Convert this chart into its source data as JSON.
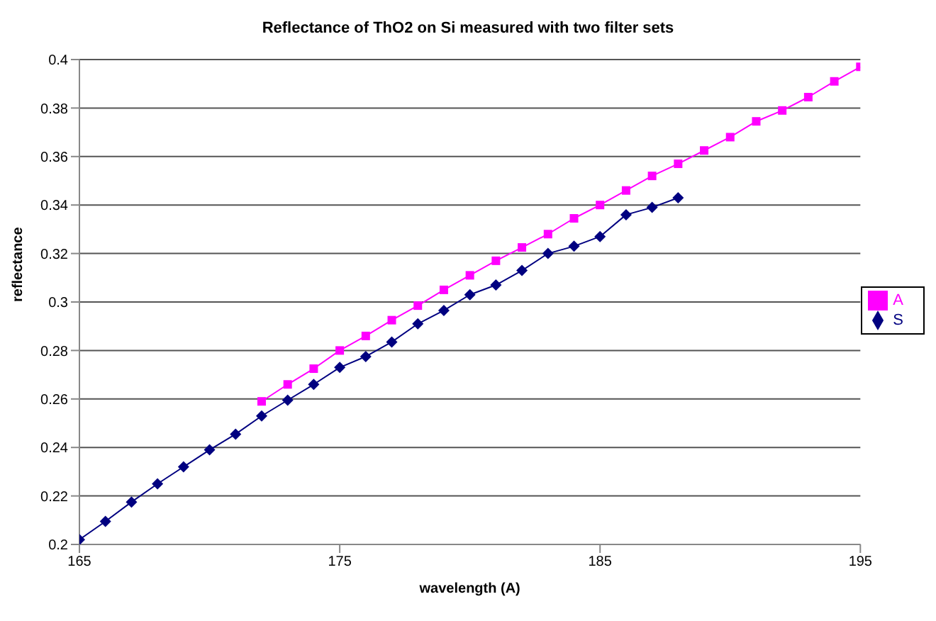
{
  "chart_data": {
    "type": "line",
    "title": "Reflectance of ThO2 on Si measured with two filter sets",
    "xlabel": "wavelength (A)",
    "ylabel": "reflectance",
    "xlim": [
      165,
      195
    ],
    "xticks": [
      165,
      175,
      185,
      195
    ],
    "ylim": [
      0.2,
      0.4
    ],
    "yticks": [
      0.2,
      0.22,
      0.24,
      0.26,
      0.28,
      0.3,
      0.32,
      0.34,
      0.36,
      0.38,
      0.4
    ],
    "grid": "y",
    "legend": "right",
    "line_style": "solid",
    "series": [
      {
        "name": "S",
        "color": "#000080",
        "marker": "diamond",
        "x": [
          165,
          166,
          167,
          168,
          169,
          170,
          171,
          172,
          173,
          174,
          175,
          176,
          177,
          178,
          179,
          180,
          181,
          182,
          183,
          184,
          185,
          186,
          187,
          188
        ],
        "values": [
          0.202,
          0.2095,
          0.2175,
          0.225,
          0.232,
          0.239,
          0.2455,
          0.253,
          0.2595,
          0.266,
          0.273,
          0.2775,
          0.2835,
          0.291,
          0.2965,
          0.303,
          0.307,
          0.313,
          0.32,
          0.323,
          0.327,
          0.336,
          0.339,
          0.343
        ]
      },
      {
        "name": "A",
        "color": "#ff00ff",
        "marker": "square",
        "x": [
          172,
          173,
          174,
          175,
          176,
          177,
          178,
          179,
          180,
          181,
          182,
          183,
          184,
          185,
          186,
          187,
          188,
          189,
          190,
          191,
          192,
          193,
          194,
          195
        ],
        "values": [
          0.259,
          0.266,
          0.2725,
          0.28,
          0.286,
          0.2925,
          0.2985,
          0.305,
          0.311,
          0.317,
          0.3225,
          0.328,
          0.3345,
          0.34,
          0.346,
          0.352,
          0.357,
          0.3625,
          0.368,
          0.3745,
          0.379,
          0.3845,
          0.391,
          0.397
        ]
      }
    ]
  }
}
